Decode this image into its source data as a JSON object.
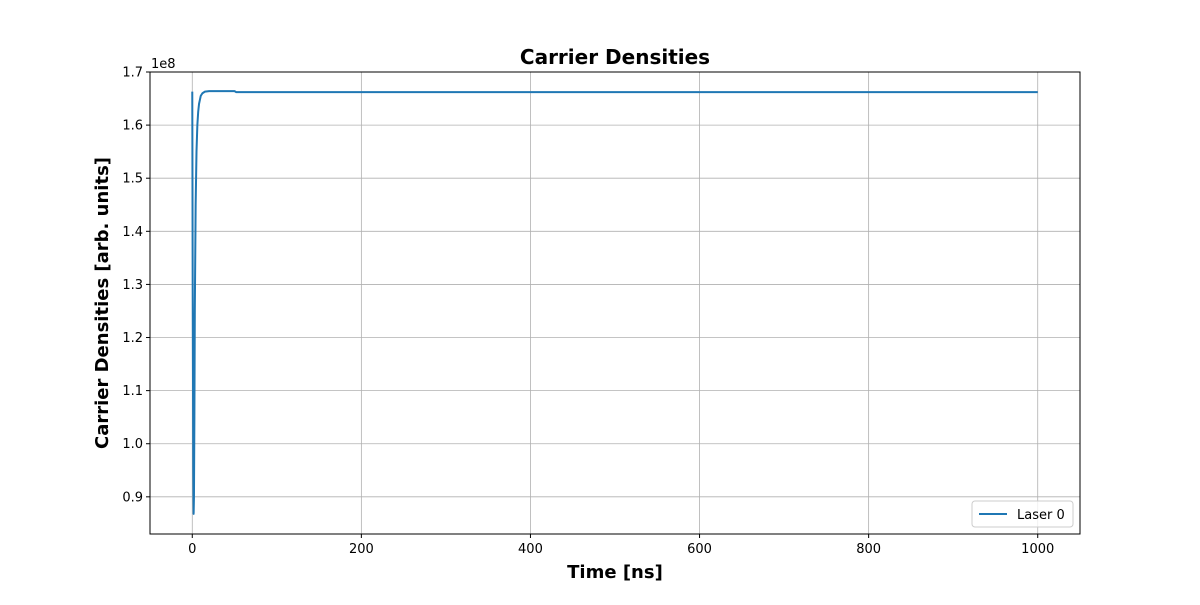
{
  "chart_data": {
    "type": "line",
    "title": "Carrier Densities",
    "xlabel": "Time [ns]",
    "ylabel": "Carrier Densities [arb. units]",
    "y_offset_label": "1e8",
    "y_multiplier": 100000000,
    "xlim": [
      -50,
      1050
    ],
    "ylim": [
      0.83,
      1.7
    ],
    "x_ticks": [
      0,
      200,
      400,
      600,
      800,
      1000
    ],
    "x_tick_labels": [
      "0",
      "200",
      "400",
      "600",
      "800",
      "1000"
    ],
    "y_ticks": [
      0.9,
      1.0,
      1.1,
      1.2,
      1.3,
      1.4,
      1.5,
      1.6,
      1.7
    ],
    "y_tick_labels": [
      "0.9",
      "1.0",
      "1.1",
      "1.2",
      "1.3",
      "1.4",
      "1.5",
      "1.6",
      "1.7"
    ],
    "grid": true,
    "legend_position": "lower-right",
    "series": [
      {
        "name": "Laser 0",
        "color": "#1f77b4",
        "x": [
          0,
          0.5,
          1.2,
          1.6,
          2.0,
          2.5,
          3,
          4,
          5,
          6,
          7,
          8,
          10,
          12,
          15,
          20,
          30,
          40,
          50,
          52,
          60,
          100,
          200,
          400,
          600,
          800,
          1000
        ],
        "y": [
          1.663,
          1.3,
          0.95,
          0.868,
          0.9,
          1.05,
          1.25,
          1.45,
          1.55,
          1.6,
          1.625,
          1.64,
          1.655,
          1.66,
          1.663,
          1.664,
          1.664,
          1.664,
          1.664,
          1.662,
          1.662,
          1.662,
          1.662,
          1.662,
          1.662,
          1.662,
          1.662
        ]
      }
    ]
  }
}
